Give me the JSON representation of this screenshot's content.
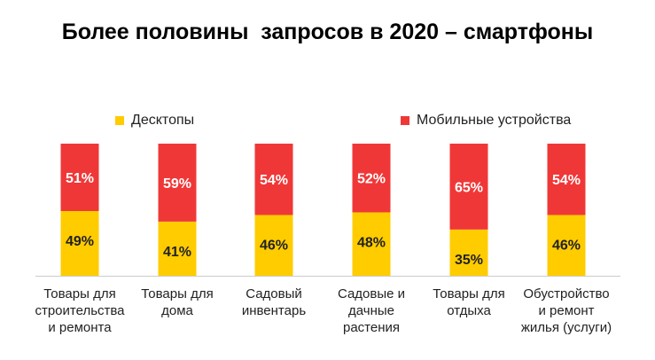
{
  "chart_data": {
    "type": "bar",
    "stacked": true,
    "title": "Более половины  запросов в 2020 – смартфоны",
    "categories": [
      "Товары для строительства и ремонта",
      "Товары для дома",
      "Садовый инвентарь",
      "Садовые и дачные растения",
      "Товары для отдыха",
      "Обустройство и ремонт жилья (услуги)"
    ],
    "category_lines": [
      [
        "Товары для",
        "строительства",
        "и ремонта"
      ],
      [
        "Товары для",
        "дома"
      ],
      [
        "Садовый",
        "инвентарь"
      ],
      [
        "Садовые и",
        "дачные",
        "растения"
      ],
      [
        "Товары для",
        "отдыха"
      ],
      [
        "Обустройство",
        "и ремонт",
        "жилья (услуги)"
      ]
    ],
    "series": [
      {
        "name": "Десктопы",
        "color": "#FFCC00",
        "values": [
          49,
          41,
          46,
          48,
          35,
          46
        ],
        "labels": [
          "49%",
          "41%",
          "46%",
          "48%",
          "35%",
          "46%"
        ]
      },
      {
        "name": "Мобильные устройства",
        "color": "#F03737",
        "values": [
          51,
          59,
          54,
          52,
          65,
          54
        ],
        "labels": [
          "51%",
          "59%",
          "54%",
          "52%",
          "65%",
          "54%"
        ]
      }
    ],
    "ylim": [
      0,
      100
    ],
    "grid": false,
    "legend": "top"
  }
}
